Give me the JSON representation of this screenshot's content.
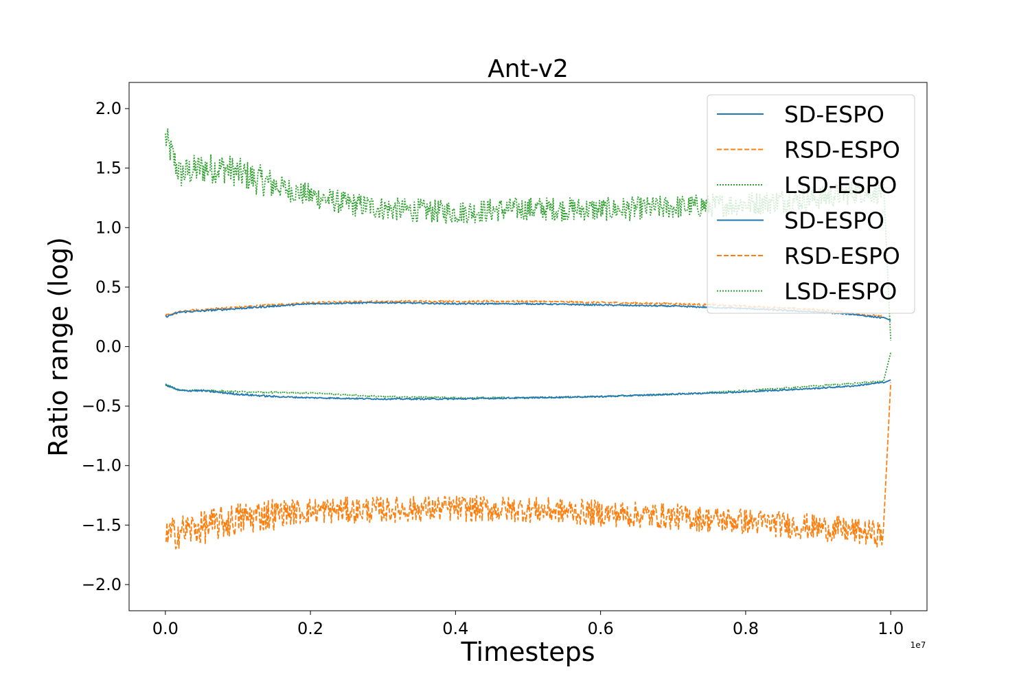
{
  "chart_data": {
    "type": "line",
    "title": "Ant-v2",
    "xlabel": "Timesteps",
    "ylabel": "Ratio range (log)",
    "x_offset_label": "1e7",
    "xlim": [
      -0.05,
      1.05
    ],
    "ylim": [
      -2.22,
      2.22
    ],
    "x_ticks": [
      0.0,
      0.2,
      0.4,
      0.6,
      0.8,
      1.0
    ],
    "x_tick_labels": [
      "0.0",
      "0.2",
      "0.4",
      "0.6",
      "0.8",
      "1.0"
    ],
    "y_ticks": [
      2.0,
      1.5,
      1.0,
      0.5,
      0.0,
      -0.5,
      -1.0,
      -1.5,
      -2.0
    ],
    "y_tick_labels": [
      "2.0",
      "1.5",
      "1.0",
      "0.5",
      "0.0",
      "−0.5",
      "−1.0",
      "−1.5",
      "−2.0"
    ],
    "legend": {
      "placement": "top-right",
      "entries": [
        {
          "label": "SD-ESPO",
          "color": "#1f77b4",
          "dash": "solid"
        },
        {
          "label": "RSD-ESPO",
          "color": "#ff7f0e",
          "dash": "dashed"
        },
        {
          "label": "LSD-ESPO",
          "color": "#2ca02c",
          "dash": "dotted"
        },
        {
          "label": "SD-ESPO",
          "color": "#1f77b4",
          "dash": "solid"
        },
        {
          "label": "RSD-ESPO",
          "color": "#ff7f0e",
          "dash": "dashed"
        },
        {
          "label": "LSD-ESPO",
          "color": "#2ca02c",
          "dash": "dotted"
        }
      ]
    },
    "series": [
      {
        "name": "LSD-ESPO upper",
        "color": "#2ca02c",
        "dash": "dotted",
        "noise": 0.1,
        "x": [
          0.0,
          0.02,
          0.05,
          0.08,
          0.12,
          0.18,
          0.25,
          0.32,
          0.4,
          0.5,
          0.6,
          0.7,
          0.8,
          0.9,
          0.95,
          0.99,
          1.0
        ],
        "y": [
          1.75,
          1.45,
          1.5,
          1.5,
          1.42,
          1.3,
          1.2,
          1.15,
          1.13,
          1.16,
          1.15,
          1.17,
          1.2,
          1.25,
          1.3,
          1.3,
          0.05
        ]
      },
      {
        "name": "RSD-ESPO upper",
        "color": "#ff7f0e",
        "dash": "dashed",
        "noise": 0.008,
        "x": [
          0.0,
          0.02,
          0.05,
          0.1,
          0.2,
          0.3,
          0.4,
          0.5,
          0.6,
          0.7,
          0.8,
          0.9,
          0.95,
          0.99,
          1.0
        ],
        "y": [
          0.26,
          0.29,
          0.31,
          0.33,
          0.37,
          0.38,
          0.38,
          0.38,
          0.37,
          0.36,
          0.34,
          0.31,
          0.28,
          0.25,
          0.22
        ]
      },
      {
        "name": "SD-ESPO upper",
        "color": "#1f77b4",
        "dash": "solid",
        "noise": 0.006,
        "x": [
          0.0,
          0.02,
          0.05,
          0.1,
          0.2,
          0.3,
          0.4,
          0.5,
          0.6,
          0.7,
          0.8,
          0.9,
          0.95,
          0.99,
          1.0
        ],
        "y": [
          0.25,
          0.29,
          0.3,
          0.32,
          0.36,
          0.37,
          0.36,
          0.36,
          0.35,
          0.34,
          0.32,
          0.29,
          0.27,
          0.24,
          0.22
        ]
      },
      {
        "name": "LSD-ESPO lower",
        "color": "#2ca02c",
        "dash": "dotted",
        "noise": 0.006,
        "x": [
          0.0,
          0.02,
          0.05,
          0.1,
          0.2,
          0.3,
          0.4,
          0.5,
          0.6,
          0.7,
          0.8,
          0.9,
          0.95,
          0.99,
          1.0
        ],
        "y": [
          -0.32,
          -0.37,
          -0.37,
          -0.38,
          -0.39,
          -0.42,
          -0.43,
          -0.43,
          -0.42,
          -0.4,
          -0.37,
          -0.33,
          -0.31,
          -0.29,
          -0.05
        ]
      },
      {
        "name": "SD-ESPO lower",
        "color": "#1f77b4",
        "dash": "solid",
        "noise": 0.006,
        "x": [
          0.0,
          0.02,
          0.05,
          0.1,
          0.15,
          0.2,
          0.3,
          0.4,
          0.5,
          0.6,
          0.7,
          0.8,
          0.9,
          0.95,
          0.99,
          1.0
        ],
        "y": [
          -0.32,
          -0.37,
          -0.37,
          -0.4,
          -0.42,
          -0.43,
          -0.44,
          -0.44,
          -0.43,
          -0.42,
          -0.4,
          -0.38,
          -0.35,
          -0.33,
          -0.3,
          -0.28
        ]
      },
      {
        "name": "RSD-ESPO lower",
        "color": "#ff7f0e",
        "dash": "dashed",
        "noise": 0.11,
        "x": [
          0.0,
          0.02,
          0.05,
          0.1,
          0.15,
          0.2,
          0.3,
          0.4,
          0.5,
          0.6,
          0.7,
          0.8,
          0.9,
          0.95,
          0.99,
          1.0
        ],
        "y": [
          -1.6,
          -1.55,
          -1.52,
          -1.45,
          -1.4,
          -1.38,
          -1.37,
          -1.36,
          -1.37,
          -1.4,
          -1.43,
          -1.47,
          -1.52,
          -1.55,
          -1.58,
          -0.3
        ]
      }
    ]
  }
}
